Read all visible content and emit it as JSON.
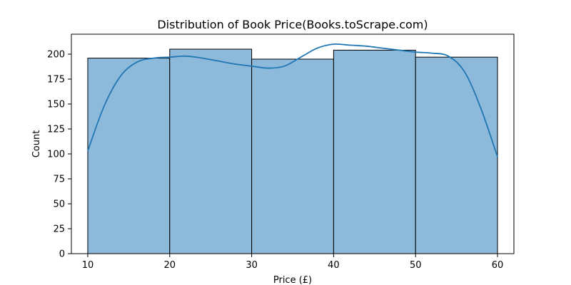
{
  "chart_data": {
    "type": "bar",
    "subtype": "histogram_with_kde",
    "title": "Distribution of Book Price(Books.toScrape.com)",
    "xlabel": "Price (£)",
    "ylabel": "Count",
    "xlim": [
      8,
      62
    ],
    "ylim": [
      0,
      220
    ],
    "x_ticks": [
      10,
      20,
      30,
      40,
      50,
      60
    ],
    "y_ticks": [
      0,
      25,
      50,
      75,
      100,
      125,
      150,
      175,
      200
    ],
    "bins": [
      {
        "x0": 10,
        "x1": 20,
        "count": 196
      },
      {
        "x0": 20,
        "x1": 30,
        "count": 205
      },
      {
        "x0": 30,
        "x1": 40,
        "count": 195
      },
      {
        "x0": 40,
        "x1": 50,
        "count": 204
      },
      {
        "x0": 50,
        "x1": 60,
        "count": 197
      }
    ],
    "kde": {
      "x": [
        10,
        12,
        14,
        16,
        18,
        20,
        22,
        24,
        26,
        28,
        30,
        32,
        34,
        36,
        38,
        40,
        42,
        44,
        46,
        48,
        50,
        52,
        54,
        56,
        58,
        60
      ],
      "y": [
        103,
        148,
        178,
        192,
        196,
        197,
        198,
        196,
        193,
        190,
        188,
        186,
        188,
        197,
        206,
        210,
        209,
        208,
        206,
        204,
        202,
        201,
        198,
        182,
        145,
        97
      ]
    },
    "bar_color": "#8db9da",
    "bar_edge_color": "#000000",
    "line_color": "#1f77b4",
    "grid": false,
    "legend": "none"
  }
}
